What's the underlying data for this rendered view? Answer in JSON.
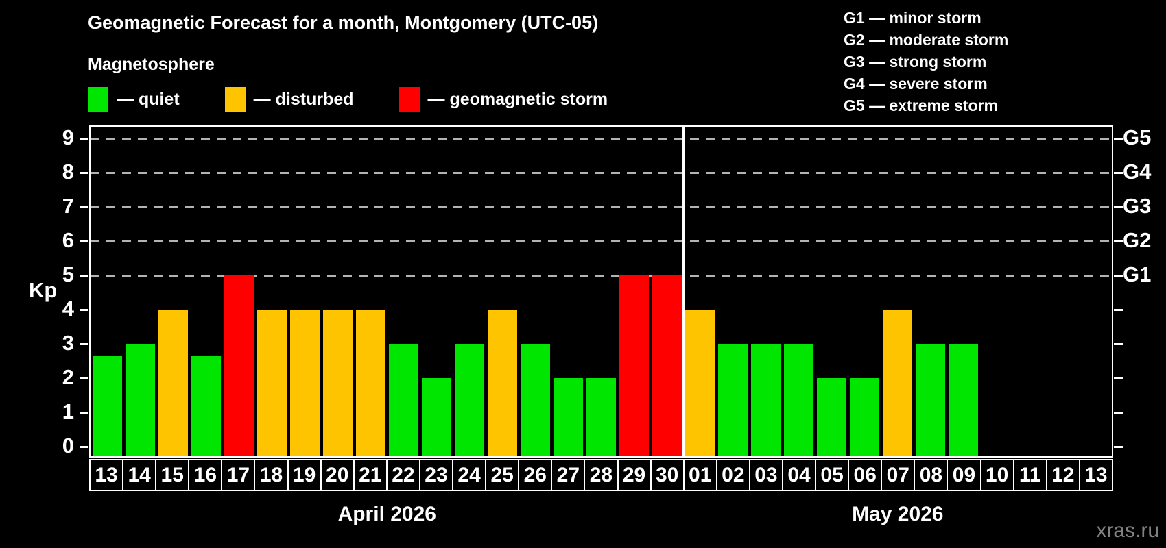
{
  "header": {
    "title": "Geomagnetic Forecast for a month, Montgomery (UTC-05)",
    "subtitle": "Magnetosphere",
    "watermark": "xras.ru"
  },
  "legend": {
    "items": [
      {
        "name": "quiet",
        "label": "— quiet",
        "color": "#00e600"
      },
      {
        "name": "disturbed",
        "label": "— disturbed",
        "color": "#ffc400"
      },
      {
        "name": "geomagnetic-storm",
        "label": "— geomagnetic storm",
        "color": "#ff0000"
      }
    ]
  },
  "g_legend": {
    "items": [
      "G1 — minor storm",
      "G2 — moderate storm",
      "G3 — strong storm",
      "G4 — severe storm",
      "G5 — extreme storm"
    ]
  },
  "chart_data": {
    "type": "bar",
    "title": "Geomagnetic Forecast for a month, Montgomery (UTC-05)",
    "ylabel_left": "Kp",
    "ylim": [
      0,
      9
    ],
    "grid": "dashed horizontal at Kp 5-9 only",
    "y_ticks_left": [
      0,
      1,
      2,
      3,
      4,
      5,
      6,
      7,
      8,
      9
    ],
    "y_ticks_right": [
      0,
      1,
      2,
      3,
      4,
      5,
      6,
      7,
      8,
      9
    ],
    "g_labels": [
      {
        "kp": 5,
        "label": "G1"
      },
      {
        "kp": 6,
        "label": "G2"
      },
      {
        "kp": 7,
        "label": "G3"
      },
      {
        "kp": 8,
        "label": "G4"
      },
      {
        "kp": 9,
        "label": "G5"
      }
    ],
    "gridlines_at": [
      5,
      6,
      7,
      8,
      9
    ],
    "months": [
      {
        "label": "April 2026",
        "days": 18
      },
      {
        "label": "May 2026",
        "days": 13
      }
    ],
    "categories": [
      "13",
      "14",
      "15",
      "16",
      "17",
      "18",
      "19",
      "20",
      "21",
      "22",
      "23",
      "24",
      "25",
      "26",
      "27",
      "28",
      "29",
      "30",
      "01",
      "02",
      "03",
      "04",
      "05",
      "06",
      "07",
      "08",
      "09",
      "10",
      "11",
      "12",
      "13"
    ],
    "values": [
      2.67,
      3,
      4,
      2.67,
      5,
      4,
      4,
      4,
      4,
      3,
      2,
      3,
      4,
      3,
      2,
      2,
      5,
      5,
      4,
      3,
      3,
      3,
      2,
      2,
      4,
      3,
      3,
      null,
      null,
      null,
      null
    ],
    "statuses": [
      "quiet",
      "quiet",
      "disturbed",
      "quiet",
      "storm",
      "disturbed",
      "disturbed",
      "disturbed",
      "disturbed",
      "quiet",
      "quiet",
      "quiet",
      "disturbed",
      "quiet",
      "quiet",
      "quiet",
      "storm",
      "storm",
      "disturbed",
      "quiet",
      "quiet",
      "quiet",
      "quiet",
      "quiet",
      "disturbed",
      "quiet",
      "quiet",
      null,
      null,
      null,
      null
    ],
    "colors": {
      "quiet": "#00e600",
      "disturbed": "#ffc400",
      "storm": "#ff0000"
    },
    "legend_position": "top-left",
    "axis_color": "#ffffff",
    "gridline_color": "#b3b3b3",
    "background_color": "#000000"
  }
}
